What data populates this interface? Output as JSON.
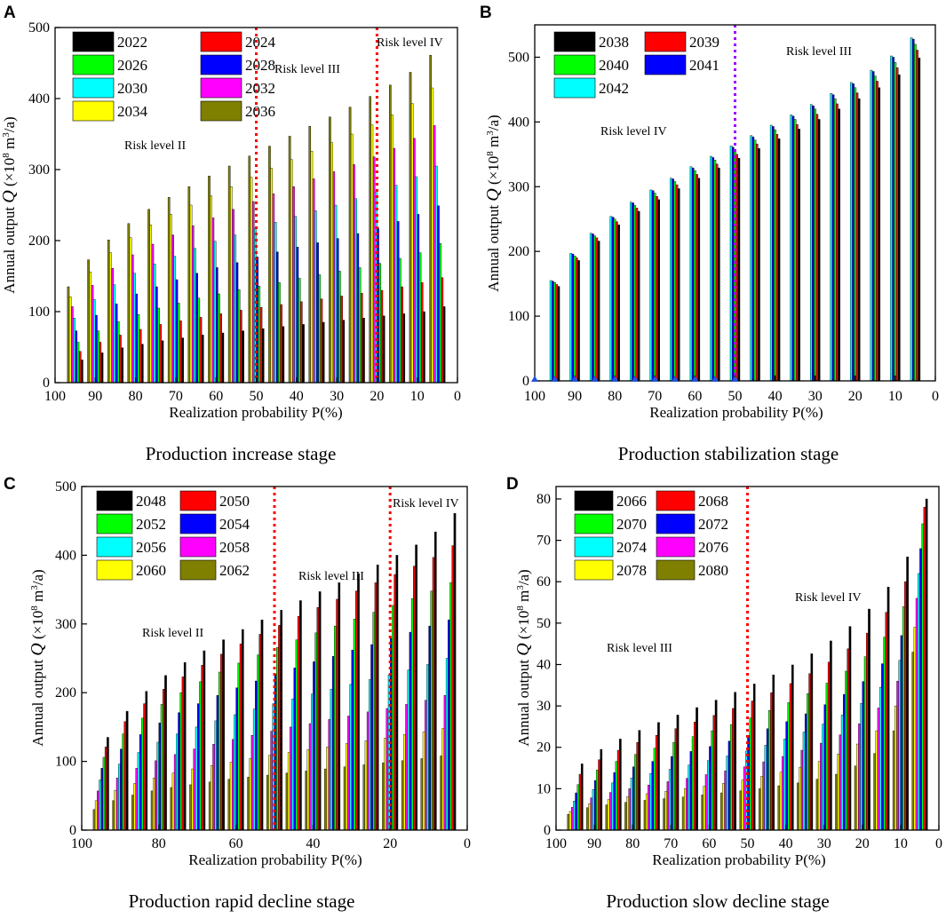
{
  "chart_data": [
    {
      "panel": "A",
      "type": "bar",
      "caption": "Production increase stage",
      "xlabel": "Realization probability P(%)",
      "ylabel_parts": [
        "Annual output ",
        "Q",
        " (×10",
        "8",
        " m",
        "3",
        "/a)"
      ],
      "ylim": [
        0,
        500
      ],
      "yticks": [
        0,
        100,
        200,
        300,
        400,
        500
      ],
      "xlim": [
        100,
        0
      ],
      "xticks": [
        100,
        90,
        80,
        70,
        60,
        50,
        40,
        30,
        20,
        10,
        0
      ],
      "categories": [
        95,
        90,
        85,
        80,
        75,
        70,
        65,
        60,
        55,
        50,
        45,
        40,
        35,
        30,
        25,
        20,
        15,
        10,
        5
      ],
      "series": [
        {
          "name": "2036",
          "color": "#7f7f00",
          "values": [
            135,
            173,
            201,
            224,
            244,
            261,
            276,
            291,
            305,
            319,
            333,
            347,
            361,
            374,
            388,
            403,
            419,
            437,
            461
          ]
        },
        {
          "name": "2034",
          "color": "#ffff00",
          "values": [
            121,
            156,
            183,
            204,
            222,
            237,
            250,
            263,
            276,
            289,
            302,
            314,
            326,
            338,
            350,
            363,
            377,
            393,
            415
          ]
        },
        {
          "name": "2032",
          "color": "#ff00ff",
          "values": [
            107,
            137,
            161,
            180,
            195,
            208,
            221,
            232,
            244,
            255,
            266,
            276,
            287,
            297,
            307,
            318,
            330,
            344,
            362
          ]
        },
        {
          "name": "2030",
          "color": "#00ffff",
          "values": [
            91,
            117,
            138,
            154,
            167,
            178,
            189,
            199,
            208,
            217,
            226,
            234,
            242,
            250,
            259,
            268,
            278,
            290,
            305
          ]
        },
        {
          "name": "2028",
          "color": "#0000ff",
          "values": [
            73,
            95,
            111,
            125,
            135,
            145,
            154,
            162,
            169,
            177,
            184,
            191,
            197,
            203,
            210,
            218,
            227,
            237,
            249
          ]
        },
        {
          "name": "2026",
          "color": "#00ff00",
          "values": [
            57,
            73,
            86,
            96,
            105,
            112,
            119,
            125,
            131,
            136,
            141,
            147,
            152,
            157,
            162,
            168,
            175,
            183,
            196
          ]
        },
        {
          "name": "2024",
          "color": "#ff0000",
          "values": [
            44,
            57,
            67,
            75,
            82,
            87,
            92,
            97,
            102,
            106,
            110,
            114,
            118,
            122,
            126,
            130,
            135,
            141,
            148
          ]
        },
        {
          "name": "2022",
          "color": "#000000",
          "values": [
            32,
            42,
            49,
            54,
            59,
            63,
            67,
            70,
            73,
            76,
            79,
            82,
            85,
            88,
            91,
            94,
            97,
            100,
            107
          ]
        }
      ],
      "legend": [
        [
          "2022",
          "2024"
        ],
        [
          "2026",
          "2028"
        ],
        [
          "2030",
          "2032"
        ],
        [
          "2034",
          "2036"
        ]
      ],
      "dividers": [
        {
          "p": 50,
          "color": "#ff0000"
        },
        {
          "p": 20,
          "color": "#ff0000"
        }
      ],
      "risk_labels": [
        "Risk level II",
        "Risk level III",
        "Risk level IV"
      ]
    },
    {
      "panel": "B",
      "type": "bar",
      "caption": "Production stabilization stage",
      "xlabel": "Realization probability P(%)",
      "ylabel_parts": [
        "Annual output ",
        "Q",
        " (×10",
        "8",
        " m",
        "3",
        "/a)"
      ],
      "ylim": [
        0,
        550
      ],
      "yticks": [
        0,
        100,
        200,
        300,
        400,
        500
      ],
      "xlim": [
        100,
        0
      ],
      "xticks": [
        100,
        90,
        80,
        70,
        60,
        50,
        40,
        30,
        20,
        10,
        0
      ],
      "categories": [
        95,
        90,
        85,
        80,
        75,
        70,
        65,
        60,
        55,
        50,
        45,
        40,
        35,
        30,
        25,
        20,
        15,
        10,
        5
      ],
      "series": [
        {
          "name": "2042",
          "color": "#00ffff",
          "values": [
            155,
            197,
            228,
            254,
            276,
            295,
            313,
            331,
            347,
            363,
            379,
            395,
            411,
            427,
            444,
            461,
            480,
            502,
            530
          ]
        },
        {
          "name": "2041",
          "color": "#0000ff",
          "values": [
            154,
            196,
            227,
            253,
            275,
            294,
            312,
            329,
            345,
            361,
            377,
            393,
            409,
            425,
            442,
            459,
            478,
            500,
            528
          ]
        },
        {
          "name": "2040",
          "color": "#00ff00",
          "values": [
            152,
            193,
            224,
            250,
            271,
            290,
            308,
            325,
            341,
            357,
            372,
            388,
            404,
            420,
            436,
            453,
            471,
            492,
            520
          ]
        },
        {
          "name": "2039",
          "color": "#ff0000",
          "values": [
            149,
            190,
            221,
            246,
            267,
            285,
            303,
            319,
            335,
            350,
            366,
            381,
            396,
            412,
            428,
            445,
            463,
            484,
            511
          ]
        },
        {
          "name": "2038",
          "color": "#000000",
          "values": [
            146,
            186,
            216,
            241,
            262,
            280,
            297,
            313,
            329,
            344,
            359,
            374,
            389,
            404,
            420,
            436,
            453,
            473,
            499
          ]
        }
      ],
      "legend": [
        [
          "2038",
          "2039"
        ],
        [
          "2040",
          "2041"
        ],
        [
          "2042",
          ""
        ]
      ],
      "dividers": [
        {
          "p": 50,
          "color": "#9900ff"
        }
      ],
      "risk_labels": [
        "Risk level IV",
        "Risk level III"
      ]
    },
    {
      "panel": "C",
      "type": "bar",
      "caption": "Production rapid decline stage",
      "xlabel": "Realization probability P(%)",
      "ylabel_parts": [
        "Annual output ",
        "Q",
        " (×10",
        "8",
        " m",
        "3",
        "/a)"
      ],
      "ylim": [
        0,
        500
      ],
      "yticks": [
        0,
        100,
        200,
        300,
        400,
        500
      ],
      "xlim": [
        100,
        0
      ],
      "xticks": [
        100,
        80,
        60,
        40,
        20,
        0
      ],
      "categories": [
        95,
        90,
        85,
        80,
        75,
        70,
        65,
        60,
        55,
        50,
        45,
        40,
        35,
        30,
        25,
        20,
        15,
        10,
        5
      ],
      "series": [
        {
          "name": "2062",
          "color": "#7f7f00",
          "values": [
            30,
            43,
            51,
            57,
            62,
            66,
            70,
            74,
            77,
            80,
            83,
            86,
            89,
            92,
            95,
            98,
            101,
            104,
            108
          ]
        },
        {
          "name": "2060",
          "color": "#ffff00",
          "values": [
            43,
            58,
            68,
            76,
            83,
            89,
            94,
            99,
            104,
            109,
            113,
            117,
            121,
            126,
            130,
            134,
            139,
            143,
            148
          ]
        },
        {
          "name": "2058",
          "color": "#ff00ff",
          "values": [
            57,
            76,
            90,
            101,
            110,
            118,
            125,
            132,
            138,
            144,
            150,
            155,
            161,
            166,
            172,
            177,
            183,
            189,
            196
          ]
        },
        {
          "name": "2056",
          "color": "#00ffff",
          "values": [
            73,
            96,
            113,
            128,
            140,
            150,
            159,
            168,
            176,
            184,
            191,
            198,
            205,
            212,
            219,
            226,
            233,
            241,
            250
          ]
        },
        {
          "name": "2054",
          "color": "#0000ff",
          "values": [
            90,
            118,
            139,
            156,
            171,
            184,
            196,
            207,
            217,
            227,
            236,
            245,
            253,
            262,
            270,
            279,
            288,
            297,
            306
          ]
        },
        {
          "name": "2052",
          "color": "#00ff00",
          "values": [
            106,
            140,
            163,
            183,
            200,
            216,
            230,
            243,
            255,
            266,
            277,
            287,
            297,
            307,
            317,
            327,
            337,
            348,
            360
          ]
        },
        {
          "name": "2050",
          "color": "#ff0000",
          "values": [
            121,
            158,
            184,
            205,
            223,
            240,
            256,
            271,
            285,
            298,
            311,
            324,
            336,
            348,
            360,
            372,
            384,
            397,
            414
          ]
        },
        {
          "name": "2048",
          "color": "#000000",
          "values": [
            135,
            173,
            202,
            225,
            244,
            261,
            277,
            292,
            306,
            320,
            334,
            347,
            360,
            373,
            386,
            400,
            415,
            434,
            461
          ]
        }
      ],
      "legend": [
        [
          "2048",
          "2050"
        ],
        [
          "2052",
          "2054"
        ],
        [
          "2056",
          "2058"
        ],
        [
          "2060",
          "2062"
        ]
      ],
      "dividers": [
        {
          "p": 50,
          "color": "#ff0000"
        },
        {
          "p": 20,
          "color": "#ff0000"
        }
      ],
      "risk_labels": [
        "Risk level II",
        "Risk level III",
        "Risk level IV"
      ]
    },
    {
      "panel": "D",
      "type": "bar",
      "caption": "Production slow decline stage",
      "xlabel": "Realization probability P(%)",
      "ylabel_parts": [
        "Annual output ",
        "Q",
        " (×10",
        "8",
        " m",
        "3",
        "/a)"
      ],
      "ylim": [
        0,
        83
      ],
      "yticks": [
        0,
        10,
        20,
        30,
        40,
        50,
        60,
        70,
        80
      ],
      "xlim": [
        100,
        0
      ],
      "xticks": [
        100,
        90,
        80,
        70,
        60,
        50,
        40,
        30,
        20,
        10,
        0
      ],
      "categories": [
        95,
        90,
        85,
        80,
        75,
        70,
        65,
        60,
        55,
        50,
        45,
        40,
        35,
        30,
        25,
        20,
        15,
        10,
        5
      ],
      "series": [
        {
          "name": "2080",
          "color": "#7f7f00",
          "values": [
            3.8,
            5.4,
            6.1,
            6.7,
            7.2,
            7.6,
            8.0,
            8.5,
            9.0,
            9.5,
            10.0,
            10.7,
            11.4,
            12.3,
            13.5,
            15.5,
            18.5,
            24,
            43
          ]
        },
        {
          "name": "2078",
          "color": "#ffff00",
          "values": [
            4.5,
            6.4,
            7.4,
            8.1,
            8.8,
            9.4,
            10.0,
            10.6,
            11.3,
            12.1,
            13.0,
            14.0,
            15.2,
            16.6,
            18.4,
            20.8,
            24,
            30,
            49
          ]
        },
        {
          "name": "2076",
          "color": "#ff00ff",
          "values": [
            5.5,
            7.8,
            9.1,
            10.0,
            10.9,
            11.7,
            12.5,
            13.4,
            14.3,
            15.3,
            16.5,
            17.8,
            19.3,
            21.0,
            23.0,
            25.7,
            29.5,
            36,
            56
          ]
        },
        {
          "name": "2074",
          "color": "#00ffff",
          "values": [
            7.0,
            9.8,
            11.4,
            12.6,
            13.7,
            14.7,
            15.7,
            16.8,
            17.9,
            19.1,
            20.5,
            22.0,
            23.7,
            25.6,
            27.8,
            30.6,
            34.5,
            41,
            62
          ]
        },
        {
          "name": "2072",
          "color": "#0000ff",
          "values": [
            9.0,
            12.0,
            13.9,
            15.3,
            16.6,
            17.8,
            19.0,
            20.2,
            21.5,
            22.9,
            24.5,
            26.2,
            28.1,
            30.3,
            32.8,
            35.9,
            40.2,
            47,
            68
          ]
        },
        {
          "name": "2070",
          "color": "#00ff00",
          "values": [
            11.0,
            14.5,
            16.6,
            18.3,
            19.8,
            21.2,
            22.6,
            24.0,
            25.5,
            27.1,
            28.9,
            30.8,
            33.0,
            35.5,
            38.4,
            41.9,
            46.6,
            54,
            74
          ]
        },
        {
          "name": "2068",
          "color": "#ff0000",
          "values": [
            13.5,
            17.0,
            19.3,
            21.2,
            22.9,
            24.5,
            26.1,
            27.7,
            29.4,
            31.2,
            33.2,
            35.4,
            37.8,
            40.6,
            43.8,
            47.6,
            52.6,
            60,
            78
          ]
        },
        {
          "name": "2066",
          "color": "#000000",
          "values": [
            16.0,
            19.5,
            22.0,
            24.1,
            26.0,
            27.8,
            29.6,
            31.4,
            33.3,
            35.3,
            37.5,
            39.9,
            42.6,
            45.7,
            49.2,
            53.4,
            58.7,
            66,
            80
          ]
        }
      ],
      "legend": [
        [
          "2066",
          "2068"
        ],
        [
          "2070",
          "2072"
        ],
        [
          "2074",
          "2076"
        ],
        [
          "2078",
          "2080"
        ]
      ],
      "dividers": [
        {
          "p": 50,
          "color": "#ff0000"
        }
      ],
      "risk_labels": [
        "Risk level III",
        "Risk level IV"
      ]
    }
  ]
}
